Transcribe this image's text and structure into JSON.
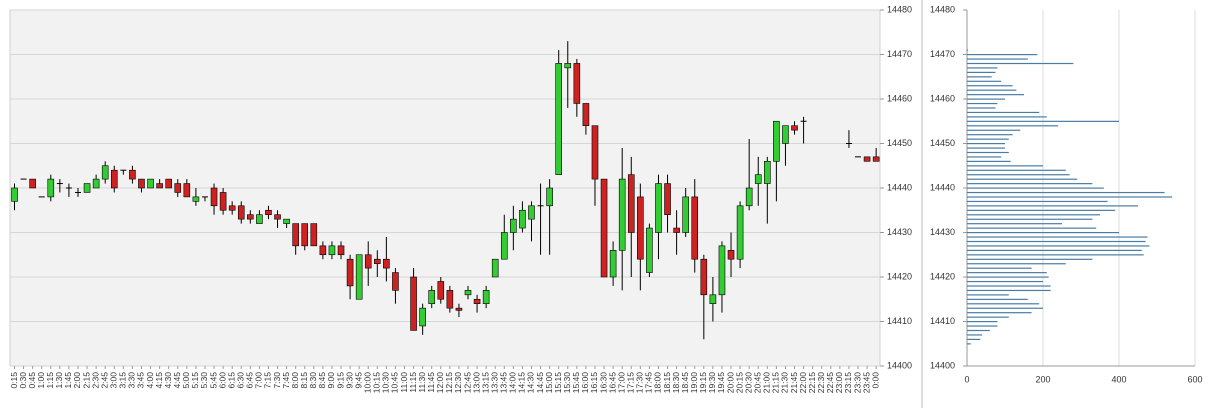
{
  "chart_data": [
    {
      "type": "candlestick",
      "up_color": "#33cc33",
      "down_color": "#cc2222",
      "ylim": [
        14400,
        14480
      ],
      "yticks": [
        14400,
        14410,
        14420,
        14430,
        14440,
        14450,
        14460,
        14470,
        14480
      ],
      "grid": true,
      "categories": [
        "0:15",
        "0:30",
        "0:45",
        "1:00",
        "1:15",
        "1:30",
        "1:45",
        "2:00",
        "2:15",
        "2:30",
        "2:45",
        "3:00",
        "3:15",
        "3:30",
        "3:45",
        "4:00",
        "4:15",
        "4:30",
        "4:45",
        "5:00",
        "5:15",
        "5:30",
        "5:45",
        "6:00",
        "6:15",
        "6:30",
        "6:45",
        "7:00",
        "7:15",
        "7:30",
        "7:45",
        "8:00",
        "8:15",
        "8:30",
        "8:45",
        "9:00",
        "9:15",
        "9:30",
        "9:45",
        "10:00",
        "10:15",
        "10:30",
        "10:45",
        "11:00",
        "11:15",
        "11:30",
        "11:45",
        "12:00",
        "12:15",
        "12:30",
        "12:45",
        "13:00",
        "13:15",
        "13:30",
        "13:45",
        "14:00",
        "14:15",
        "14:30",
        "14:45",
        "15:00",
        "15:15",
        "15:30",
        "15:45",
        "16:00",
        "16:15",
        "16:30",
        "16:45",
        "17:00",
        "17:15",
        "17:30",
        "17:45",
        "18:00",
        "18:15",
        "18:30",
        "18:45",
        "19:00",
        "19:15",
        "19:30",
        "19:45",
        "20:00",
        "20:15",
        "20:30",
        "20:45",
        "21:00",
        "21:15",
        "21:30",
        "21:45",
        "22:00",
        "22:15",
        "22:30",
        "22:45",
        "23:00",
        "23:15",
        "23:30",
        "23:45",
        "0:00"
      ],
      "ohlc": [
        [
          14437,
          14441,
          14435,
          14440
        ],
        [
          14442,
          14442,
          14442,
          14442
        ],
        [
          14442,
          14442,
          14440,
          14440
        ],
        [
          14438,
          14438,
          14438,
          14438
        ],
        [
          14438,
          14443,
          14437,
          14442
        ],
        [
          14441,
          14442,
          14439,
          14441
        ],
        [
          14440,
          14441,
          14438,
          14440
        ],
        [
          14439,
          14440,
          14438,
          14439
        ],
        [
          14439,
          14441,
          14439,
          14441
        ],
        [
          14440,
          14443,
          14440,
          14442
        ],
        [
          14442,
          14446,
          14441,
          14445
        ],
        [
          14444,
          14445,
          14439,
          14440
        ],
        [
          14444,
          14444,
          14443,
          14444
        ],
        [
          14444,
          14445,
          14441,
          14442
        ],
        [
          14442,
          14442,
          14439,
          14440
        ],
        [
          14440,
          14442,
          14440,
          14442
        ],
        [
          14441,
          14442,
          14440,
          14440
        ],
        [
          14442,
          14442,
          14440,
          14440
        ],
        [
          14441,
          14442,
          14438,
          14439
        ],
        [
          14441,
          14442,
          14438,
          14438
        ],
        [
          14437,
          14440,
          14436,
          14438
        ],
        [
          14438,
          14438,
          14437,
          14438
        ],
        [
          14440,
          14441,
          14434,
          14436
        ],
        [
          14439,
          14440,
          14434,
          14435
        ],
        [
          14436,
          14437,
          14434,
          14435
        ],
        [
          14436,
          14437,
          14432,
          14433
        ],
        [
          14434,
          14435,
          14432,
          14433
        ],
        [
          14432,
          14435,
          14432,
          14434
        ],
        [
          14435,
          14436,
          14433,
          14434
        ],
        [
          14434,
          14435,
          14431,
          14433
        ],
        [
          14432,
          14433,
          14431,
          14433
        ],
        [
          14432,
          14432,
          14425,
          14427
        ],
        [
          14432,
          14432,
          14426,
          14427
        ],
        [
          14432,
          14432,
          14427,
          14427
        ],
        [
          14427,
          14428,
          14424,
          14425
        ],
        [
          14425,
          14428,
          14424,
          14427
        ],
        [
          14427,
          14428,
          14424,
          14425
        ],
        [
          14424,
          14425,
          14415,
          14418
        ],
        [
          14415,
          14425,
          14415,
          14425
        ],
        [
          14425,
          14428,
          14418,
          14422
        ],
        [
          14424,
          14426,
          14420,
          14423
        ],
        [
          14424,
          14429,
          14419,
          14422
        ],
        [
          14421,
          14422,
          14414,
          14417
        ],
        null,
        [
          14420,
          14422,
          14408,
          14408
        ],
        [
          14409,
          14414,
          14407,
          14413
        ],
        [
          14414,
          14418,
          14413,
          14417
        ],
        [
          14419,
          14420,
          14414,
          14415
        ],
        [
          14417,
          14418,
          14412,
          14413
        ],
        [
          14413,
          14414,
          14411,
          14412.5
        ],
        [
          14416,
          14418,
          14415,
          14417
        ],
        [
          14415,
          14416,
          14412,
          14414
        ],
        [
          14414,
          14418,
          14413,
          14417
        ],
        [
          14420,
          14424,
          14420,
          14424
        ],
        [
          14424,
          14434,
          14424,
          14430
        ],
        [
          14430,
          14436,
          14426,
          14433
        ],
        [
          14431,
          14437,
          14430,
          14435
        ],
        [
          14433,
          14437,
          14428,
          14436
        ],
        [
          14436,
          14441,
          14425,
          14436
        ],
        [
          14436,
          14442,
          14425,
          14440
        ],
        [
          14443,
          14471,
          14443,
          14468
        ],
        [
          14467,
          14473,
          14458,
          14468
        ],
        [
          14468,
          14469,
          14456,
          14459
        ],
        [
          14459,
          14459,
          14452,
          14454
        ],
        [
          14454,
          14454,
          14436,
          14442
        ],
        [
          14442,
          14442,
          14420,
          14420
        ],
        [
          14420,
          14428,
          14418,
          14426
        ],
        [
          14426,
          14449,
          14417,
          14442
        ],
        [
          14443,
          14447,
          14420,
          14430
        ],
        [
          14438,
          14441,
          14417,
          14424
        ],
        [
          14421,
          14432,
          14420,
          14431
        ],
        [
          14430,
          14443,
          14424,
          14441
        ],
        [
          14441,
          14443,
          14430,
          14434
        ],
        [
          14431,
          14435,
          14425,
          14430
        ],
        [
          14430,
          14440,
          14429,
          14438
        ],
        [
          14438,
          14442,
          14421,
          14424
        ],
        [
          14424,
          14425,
          14406,
          14416
        ],
        [
          14414,
          14420,
          14410,
          14416
        ],
        [
          14416,
          14428,
          14412,
          14427
        ],
        [
          14426,
          14430,
          14420,
          14424
        ],
        [
          14424,
          14437,
          14422,
          14436
        ],
        [
          14436,
          14451,
          14435,
          14440
        ],
        [
          14441,
          14447,
          14436,
          14443
        ],
        [
          14441,
          14447,
          14432,
          14446
        ],
        [
          14446,
          14455,
          14437,
          14455
        ],
        [
          14450,
          14454,
          14445,
          14454
        ],
        [
          14454,
          14455,
          14452,
          14453
        ],
        [
          14455,
          14456,
          14450,
          14455
        ],
        null,
        null,
        null,
        null,
        [
          14450,
          14453,
          14449,
          14450
        ],
        [
          14447,
          14447,
          14447,
          14447
        ],
        [
          14447,
          14447,
          14446,
          14446
        ],
        [
          14447,
          14449,
          14446,
          14446
        ]
      ]
    },
    {
      "type": "barh",
      "color": "#4a7ca6",
      "xlim": [
        0,
        600
      ],
      "xticks": [
        0,
        200,
        400,
        600
      ],
      "ylim": [
        14400,
        14480
      ],
      "yticks": [
        14400,
        14410,
        14420,
        14430,
        14440,
        14450,
        14460,
        14470,
        14480
      ],
      "grid": true,
      "prices": [
        14471,
        14470,
        14469,
        14468,
        14467,
        14466,
        14465,
        14464,
        14463,
        14462,
        14461,
        14460,
        14459,
        14458,
        14457,
        14456,
        14455,
        14454,
        14453,
        14452,
        14451,
        14450,
        14449,
        14448,
        14447,
        14446,
        14445,
        14444,
        14443,
        14442,
        14441,
        14440,
        14439,
        14438,
        14437,
        14436,
        14435,
        14434,
        14433,
        14432,
        14431,
        14430,
        14429,
        14428,
        14427,
        14426,
        14425,
        14424,
        14423,
        14422,
        14421,
        14420,
        14419,
        14418,
        14417,
        14416,
        14415,
        14414,
        14413,
        14412,
        14411,
        14410,
        14409,
        14408,
        14407,
        14406,
        14405
      ],
      "values": [
        3,
        185,
        160,
        280,
        80,
        75,
        65,
        90,
        120,
        130,
        150,
        100,
        80,
        75,
        190,
        210,
        400,
        240,
        140,
        120,
        110,
        100,
        100,
        110,
        90,
        115,
        200,
        260,
        270,
        290,
        330,
        360,
        520,
        540,
        370,
        450,
        390,
        350,
        330,
        250,
        340,
        400,
        475,
        470,
        480,
        460,
        465,
        330,
        260,
        170,
        210,
        215,
        200,
        220,
        220,
        110,
        160,
        190,
        200,
        170,
        110,
        80,
        80,
        60,
        40,
        35,
        10
      ]
    }
  ]
}
